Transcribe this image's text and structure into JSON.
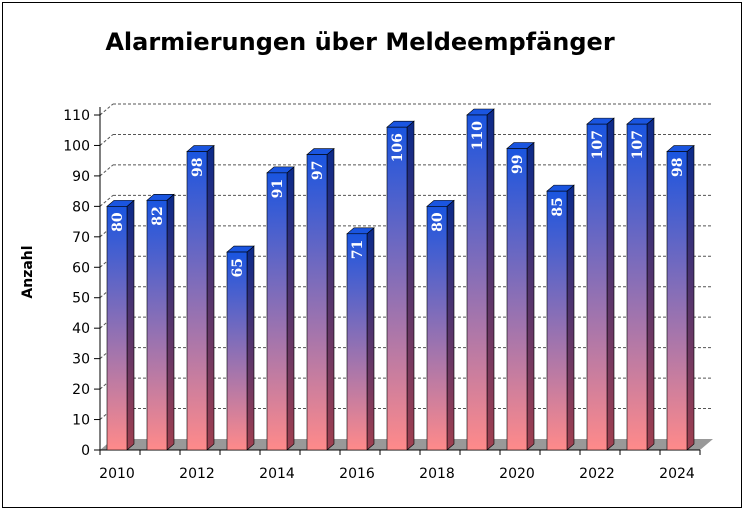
{
  "chart_data": {
    "type": "bar",
    "title": "Alarmierungen über Meldeempfänger",
    "xlabel": "",
    "ylabel": "Anzahl",
    "ylim": [
      0,
      110
    ],
    "ytick_step": 10,
    "grid": true,
    "categories": [
      "2010",
      "2011",
      "2012",
      "2013",
      "2014",
      "2015",
      "2016",
      "2017",
      "2018",
      "2019",
      "2020",
      "2021",
      "2022",
      "2023",
      "2024"
    ],
    "x_tick_labels": [
      "2010",
      "2012",
      "2014",
      "2016",
      "2018",
      "2020",
      "2022",
      "2024"
    ],
    "values": [
      80,
      82,
      98,
      65,
      91,
      97,
      71,
      106,
      80,
      110,
      99,
      85,
      107,
      107,
      98
    ],
    "colors": {
      "bar_top": "#1a55e0",
      "bar_bottom": "#ff8a8a",
      "bar_side": "#0b2a8a",
      "floor": "#999999",
      "grid": "#555555"
    }
  }
}
